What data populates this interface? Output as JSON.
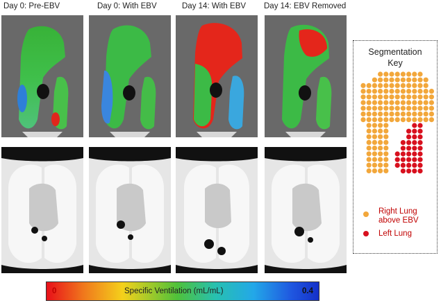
{
  "panel_titles": [
    "Day 0: Pre-EBV",
    "Day 0: With EBV",
    "Day 14: With EBV",
    "Day 14: EBV Removed"
  ],
  "key": {
    "title_line1": "Segmentation",
    "title_line2": "Key",
    "right_label_line1": "Right Lung",
    "right_label_line2": "above EBV",
    "left_label": "Left Lung",
    "right_color": "#f2a73b",
    "left_color": "#d8101e"
  },
  "colorbar": {
    "label": "Specific Ventilation (mL/mL)",
    "min": "0",
    "max": "0.4"
  }
}
